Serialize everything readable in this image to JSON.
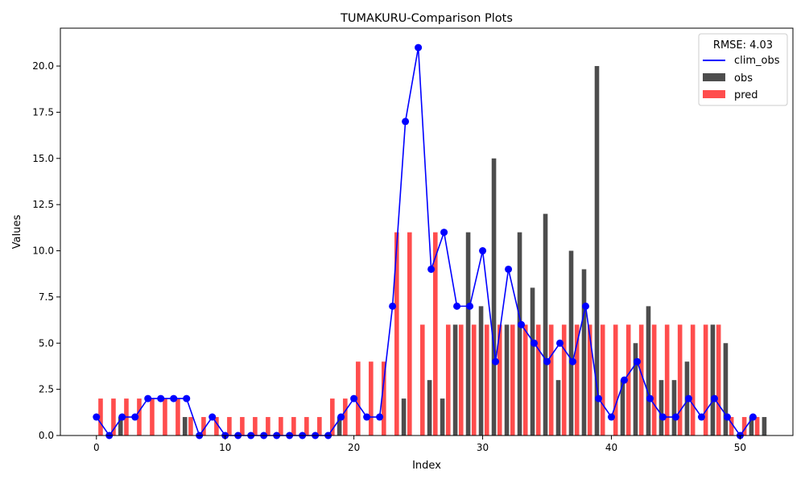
{
  "chart_data": {
    "type": "bar",
    "title": "TUMAKURU-Comparison Plots",
    "xlabel": "Index",
    "ylabel": "Values",
    "xlim": [
      -2.8,
      54.1
    ],
    "ylim": [
      0,
      22.05
    ],
    "xticks": [
      0,
      10,
      20,
      30,
      40,
      50
    ],
    "yticks": [
      0.0,
      2.5,
      5.0,
      7.5,
      10.0,
      12.5,
      15.0,
      17.5,
      20.0
    ],
    "legend_title": "RMSE: 4.03",
    "legend_position": "top-right",
    "grid": false,
    "x": [
      0,
      1,
      2,
      3,
      4,
      5,
      6,
      7,
      8,
      9,
      10,
      11,
      12,
      13,
      14,
      15,
      16,
      17,
      18,
      19,
      20,
      21,
      22,
      23,
      24,
      25,
      26,
      27,
      28,
      29,
      30,
      31,
      32,
      33,
      34,
      35,
      36,
      37,
      38,
      39,
      40,
      41,
      42,
      43,
      44,
      45,
      46,
      47,
      48,
      49,
      50,
      51
    ],
    "series": [
      {
        "name": "clim_obs",
        "kind": "line",
        "color": "#0000ff",
        "values": [
          1,
          0,
          1,
          1,
          2,
          2,
          2,
          2,
          0,
          1,
          0,
          0,
          0,
          0,
          0,
          0,
          0,
          0,
          0,
          1,
          2,
          1,
          1,
          7,
          17,
          21,
          9,
          11,
          7,
          7,
          10,
          4,
          9,
          6,
          5,
          4,
          5,
          4,
          7,
          2,
          1,
          3,
          4,
          2,
          1,
          1,
          2,
          1,
          2,
          1,
          0,
          1
        ]
      },
      {
        "name": "obs",
        "kind": "bar",
        "color": "#4d4d4d",
        "values": [
          0,
          1,
          0,
          0,
          0,
          0,
          1,
          0,
          0,
          0,
          0,
          0,
          0,
          0,
          0,
          0,
          0,
          0,
          1,
          0,
          0,
          0,
          0,
          2,
          0,
          3,
          2,
          6,
          11,
          7,
          15,
          6,
          11,
          8,
          12,
          3,
          10,
          9,
          20,
          0,
          3,
          5,
          7,
          3,
          3,
          4,
          0,
          6,
          5,
          0,
          1,
          1
        ]
      },
      {
        "name": "pred",
        "kind": "bar",
        "color": "#ff4d4d",
        "values": [
          2,
          2,
          2,
          2,
          2,
          2,
          2,
          1,
          1,
          1,
          1,
          1,
          1,
          1,
          1,
          1,
          1,
          1,
          2,
          2,
          4,
          4,
          4,
          11,
          11,
          6,
          11,
          6,
          6,
          6,
          6,
          6,
          6,
          6,
          6,
          6,
          6,
          6,
          6,
          6,
          6,
          6,
          6,
          6,
          6,
          6,
          6,
          6,
          6,
          1,
          1,
          1
        ]
      }
    ]
  }
}
